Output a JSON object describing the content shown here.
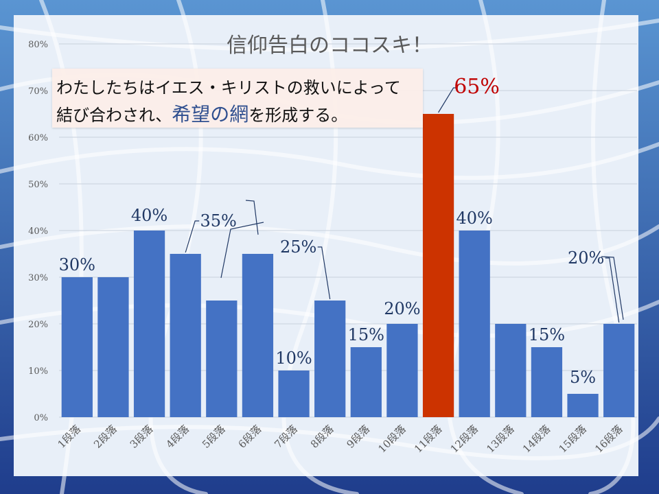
{
  "colors": {
    "bar": "#4472c4",
    "highlight_bar": "#cc3300",
    "label": "#203864",
    "highlight_label": "#c00000",
    "title": "#595959",
    "axis_text": "#595959",
    "panel": "#e8eff8",
    "background_from": "#5a95d2",
    "background_to": "#1f3d8c"
  },
  "callout": {
    "line1": "わたしたちはイエス・キリストの救いによって",
    "line2_a": "結び合わされ、",
    "line2_b": "希望の網",
    "line2_c": "を形成する。"
  },
  "chart_data": {
    "type": "bar",
    "title": "信仰告白のココスキ！",
    "categories": [
      "1段落",
      "2段落",
      "3段落",
      "4段落",
      "5段落",
      "6段落",
      "7段落",
      "8段落",
      "9段落",
      "10段落",
      "11段落",
      "12段落",
      "13段落",
      "14段落",
      "15段落",
      "16段落"
    ],
    "values": [
      0.3,
      0.3,
      0.4,
      0.35,
      0.25,
      0.35,
      0.1,
      0.25,
      0.15,
      0.2,
      0.65,
      0.4,
      0.2,
      0.15,
      0.05,
      0.2
    ],
    "data_labels": [
      "30%",
      "",
      "40%",
      "35%",
      "",
      "",
      "10%",
      "25%",
      "15%",
      "20%",
      "65%",
      "40%",
      "",
      "15%",
      "5%",
      "20%"
    ],
    "highlight_index": 10,
    "y_ticks": [
      "0%",
      "10%",
      "20%",
      "30%",
      "40%",
      "50%",
      "60%",
      "70%",
      "80%"
    ],
    "ylim": [
      0,
      0.8
    ],
    "grid": true,
    "legend": "none"
  }
}
